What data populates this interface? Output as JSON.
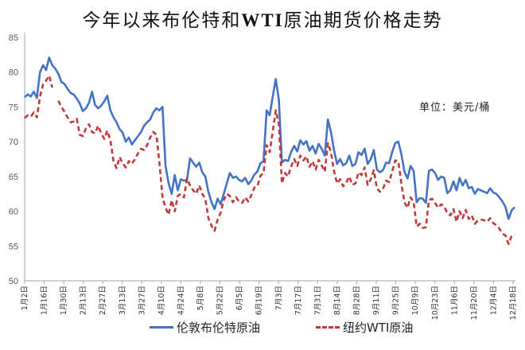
{
  "chart_data": {
    "type": "line",
    "title": "今年以来布伦特和WTI原油期货价格走势",
    "unit_label": "单位：美元/桶",
    "xlabel": "",
    "ylabel": "",
    "ylim": [
      50,
      85
    ],
    "yticks": [
      50,
      55,
      60,
      65,
      70,
      75,
      80,
      85
    ],
    "xticks": [
      "1月2日",
      "1月16日",
      "1月30日",
      "2月13日",
      "2月27日",
      "3月13日",
      "3月27日",
      "4月10日",
      "4月24日",
      "5月8日",
      "5月22日",
      "6月5日",
      "6月19日",
      "7月3日",
      "7月17日",
      "7月31日",
      "8月14日",
      "8月28日",
      "9月11日",
      "9月25日",
      "10月9日",
      "10月23日",
      "11月6日",
      "11月20日",
      "12月4日",
      "12月18日"
    ],
    "grid": false,
    "legend_position": "bottom",
    "series": [
      {
        "name": "伦敦布伦特原油",
        "color": "#4472C4",
        "style": "solid",
        "values": [
          76.4,
          76.8,
          76.5,
          77.2,
          76.3,
          80.0,
          81.0,
          80.3,
          82.1,
          81.0,
          80.5,
          79.8,
          78.6,
          78.3,
          77.6,
          77.0,
          76.8,
          76.2,
          75.5,
          74.4,
          74.8,
          75.6,
          77.2,
          75.3,
          74.8,
          75.2,
          75.8,
          76.6,
          74.5,
          73.5,
          72.8,
          71.8,
          71.3,
          70.0,
          70.6,
          69.6,
          70.2,
          70.8,
          71.4,
          72.3,
          72.8,
          73.2,
          74.2,
          74.8,
          74.5,
          75.0,
          66.5,
          64.0,
          62.5,
          65.2,
          63.0,
          64.6,
          64.4,
          64.5,
          67.6,
          67.0,
          66.4,
          67.0,
          65.6,
          65.0,
          62.8,
          61.3,
          60.3,
          61.8,
          61.0,
          62.5,
          64.0,
          65.5,
          64.8,
          65.0,
          64.5,
          64.3,
          64.8,
          63.9,
          64.4,
          65.3,
          65.7,
          66.9,
          67.2,
          74.5,
          73.8,
          76.5,
          79.0,
          76.0,
          67.0,
          67.4,
          67.2,
          68.5,
          69.4,
          68.6,
          70.2,
          69.6,
          70.1,
          68.7,
          69.4,
          68.3,
          69.7,
          69.0,
          68.0,
          73.2,
          71.4,
          68.8,
          66.8,
          67.5,
          66.6,
          66.9,
          68.0,
          66.5,
          66.8,
          68.5,
          68.1,
          69.0,
          66.8,
          67.5,
          68.8,
          66.0,
          65.6,
          65.9,
          67.0,
          66.9,
          68.5,
          69.8,
          70.0,
          68.2,
          65.7,
          64.7,
          66.5,
          65.8,
          61.3,
          61.9,
          61.8,
          61.2,
          65.8,
          66.0,
          65.5,
          64.5,
          65.0,
          64.8,
          62.6,
          63.0,
          64.3,
          63.0,
          64.8,
          63.7,
          64.5,
          63.3,
          63.5,
          62.5,
          63.2,
          63.0,
          62.8,
          62.6,
          63.3,
          62.7,
          62.5,
          62.0,
          61.4,
          60.6,
          58.9,
          60.1,
          60.6
        ],
        "approx_last": 60.6
      },
      {
        "name": "纽约WTI原油",
        "color": "#C0393B",
        "style": "dashed",
        "values": [
          73.4,
          73.8,
          73.6,
          74.2,
          73.5,
          76.5,
          78.2,
          78.8,
          79.5,
          77.8,
          null,
          75.9,
          75.0,
          74.3,
          73.5,
          72.8,
          72.9,
          73.3,
          71.0,
          70.8,
          71.9,
          72.5,
          71.4,
          71.2,
          72.3,
          71.2,
          70.4,
          71.6,
          70.2,
          67.2,
          66.2,
          67.8,
          66.9,
          66.3,
          67.2,
          66.8,
          67.5,
          68.3,
          69.0,
          68.8,
          69.5,
          70.6,
          71.4,
          71.0,
          67.0,
          62.0,
          60.5,
          59.5,
          61.6,
          60.0,
          62.2,
          62.5,
          62.0,
          64.7,
          63.7,
          63.0,
          62.5,
          63.7,
          62.5,
          61.8,
          59.0,
          57.9,
          57.2,
          58.8,
          59.8,
          61.6,
          62.5,
          62.2,
          61.3,
          62.0,
          61.4,
          61.2,
          62.0,
          61.4,
          62.3,
          63.4,
          63.6,
          65.1,
          65.5,
          69.5,
          68.5,
          71.5,
          74.5,
          72.5,
          64.0,
          65.5,
          65.0,
          66.4,
          67.5,
          66.5,
          68.0,
          67.3,
          67.9,
          66.4,
          67.2,
          66.0,
          67.4,
          66.6,
          65.7,
          69.8,
          68.5,
          65.8,
          64.0,
          64.6,
          63.6,
          64.1,
          65.0,
          63.8,
          64.0,
          65.6,
          65.2,
          66.3,
          63.8,
          64.6,
          65.9,
          63.3,
          62.8,
          63.2,
          64.4,
          64.2,
          65.7,
          67.3,
          67.2,
          64.0,
          61.3,
          60.5,
          62.0,
          61.3,
          57.8,
          58.2,
          57.6,
          57.7,
          61.6,
          61.8,
          61.2,
          60.5,
          61.0,
          60.7,
          59.7,
          59.4,
          60.3,
          58.5,
          60.0,
          59.0,
          60.2,
          58.9,
          59.4,
          58.2,
          58.7,
          58.8,
          58.7,
          58.5,
          59.0,
          58.3,
          58.0,
          57.5,
          56.8,
          56.5,
          55.3,
          56.4,
          56.7
        ],
        "approx_last": 56.7
      }
    ]
  },
  "labels": {
    "title_pre": "今年以来布伦特和",
    "title_bold": "WTI",
    "title_post": "原油期货价格走势",
    "unit": "单位：美元/桶",
    "legend_brent": "伦敦布伦特原油",
    "legend_wti": "纽约WTI原油"
  }
}
